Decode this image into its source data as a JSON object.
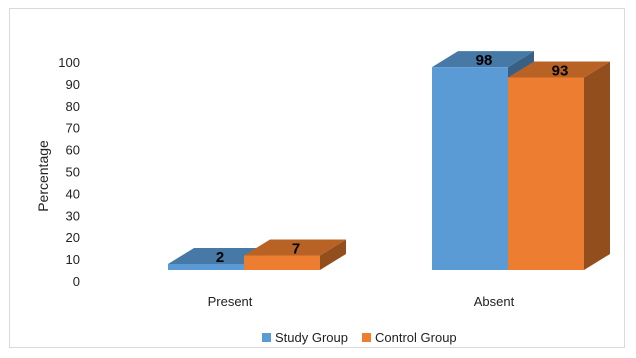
{
  "chart_data": {
    "type": "bar",
    "style": "3d-clustered-column",
    "categories": [
      "Present",
      "Absent"
    ],
    "series": [
      {
        "name": "Study Group",
        "values": [
          2,
          98
        ],
        "color": "#5b9bd5"
      },
      {
        "name": "Control Group",
        "values": [
          7,
          93
        ],
        "color": "#ed7d31"
      }
    ],
    "data_labels": [
      [
        "2",
        "98"
      ],
      [
        "7",
        "93"
      ]
    ],
    "ylabel": "Percentage",
    "yticks": [
      0,
      10,
      20,
      30,
      40,
      50,
      60,
      70,
      80,
      90,
      100
    ],
    "ylim": [
      0,
      100
    ],
    "grid": false,
    "legend_position": "bottom"
  }
}
